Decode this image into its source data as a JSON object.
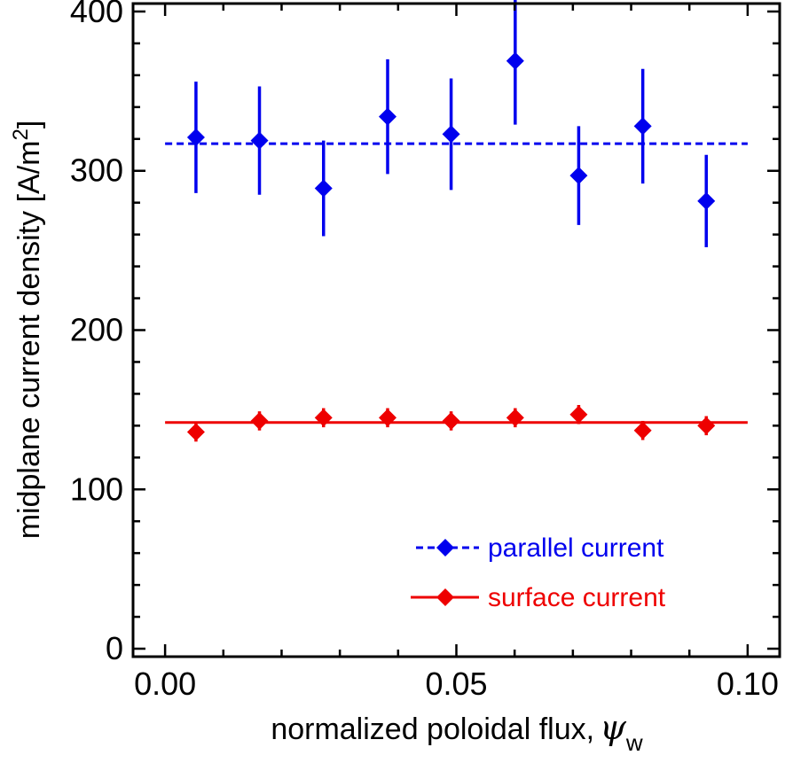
{
  "chart_data": {
    "type": "scatter",
    "title": "",
    "xlabel": "normalized poloidal flux,",
    "xlabel_symbol": "ψ",
    "xlabel_subscript": "w",
    "ylabel": "midplane current density [A/m",
    "ylabel_superscript": "2",
    "ylabel_suffix": "]",
    "xlim": [
      -0.0055,
      0.1055
    ],
    "ylim": [
      -5,
      405
    ],
    "x_ticks": [
      {
        "value": 0.0,
        "label": "0.00"
      },
      {
        "value": 0.05,
        "label": "0.05"
      },
      {
        "value": 0.1,
        "label": "0.10"
      }
    ],
    "x_minor_step": 0.01,
    "y_ticks": [
      {
        "value": 0,
        "label": "0"
      },
      {
        "value": 100,
        "label": "100"
      },
      {
        "value": 200,
        "label": "200"
      },
      {
        "value": 300,
        "label": "300"
      },
      {
        "value": 400,
        "label": "400"
      }
    ],
    "y_minor_step": 20,
    "grid": false,
    "legend_position": "bottom-right",
    "series": [
      {
        "name": "parallel current",
        "color": "#0000ee",
        "marker": "diamond",
        "fit_line": {
          "y": 317,
          "x_range": [
            0.0,
            0.1
          ],
          "style": "dashed"
        },
        "x": [
          0.0053,
          0.0162,
          0.0272,
          0.0382,
          0.0491,
          0.0601,
          0.071,
          0.082,
          0.0929
        ],
        "y": [
          321,
          319,
          289,
          334,
          323,
          369,
          297,
          328,
          281
        ],
        "err": [
          35,
          34,
          30,
          36,
          35,
          40,
          31,
          36,
          29
        ]
      },
      {
        "name": "surface current",
        "color": "#ee0000",
        "marker": "diamond",
        "fit_line": {
          "y": 142,
          "x_range": [
            0.0,
            0.1
          ],
          "style": "solid"
        },
        "x": [
          0.0053,
          0.0162,
          0.0272,
          0.0382,
          0.0491,
          0.0601,
          0.071,
          0.082,
          0.0929
        ],
        "y": [
          136,
          143,
          145,
          145,
          143,
          145,
          147,
          137,
          140
        ],
        "err": [
          6,
          6,
          6,
          6,
          6,
          6,
          6,
          6,
          6
        ]
      }
    ]
  }
}
